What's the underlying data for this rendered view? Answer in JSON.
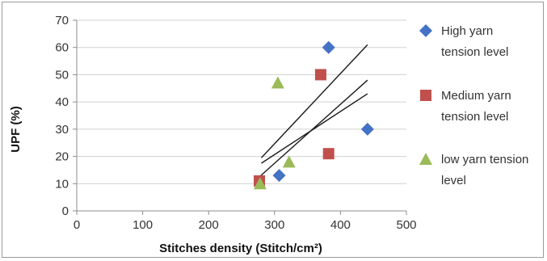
{
  "chart_data": {
    "type": "scatter",
    "xlabel": "Stitches density (Stitch/cm²)",
    "ylabel": "UPF (%)",
    "xlim": [
      0,
      500
    ],
    "ylim": [
      0,
      70
    ],
    "xticks": [
      0,
      100,
      200,
      300,
      400,
      500
    ],
    "yticks": [
      0,
      10,
      20,
      30,
      40,
      50,
      60,
      70
    ],
    "grid": "horizontal",
    "legend_position": "right",
    "series": [
      {
        "name": "High yarn tension level",
        "marker": "diamond",
        "color": "#4472c4",
        "x": [
          307,
          382,
          441
        ],
        "y": [
          13,
          60,
          30
        ],
        "trendline": {
          "x": [
            280,
            441
          ],
          "y": [
            17.5,
            43
          ]
        }
      },
      {
        "name": "Medium yarn tension level",
        "marker": "square",
        "color": "#c0504d",
        "x": [
          277,
          370,
          382
        ],
        "y": [
          11,
          50,
          21
        ],
        "trendline": {
          "x": [
            277,
            441
          ],
          "y": [
            12.5,
            48
          ]
        }
      },
      {
        "name": "low yarn tension level",
        "marker": "triangle",
        "color": "#9bbb59",
        "x": [
          278,
          305,
          322
        ],
        "y": [
          10,
          47,
          18
        ],
        "trendline": {
          "x": [
            280,
            441
          ],
          "y": [
            19.5,
            61
          ]
        }
      }
    ]
  }
}
